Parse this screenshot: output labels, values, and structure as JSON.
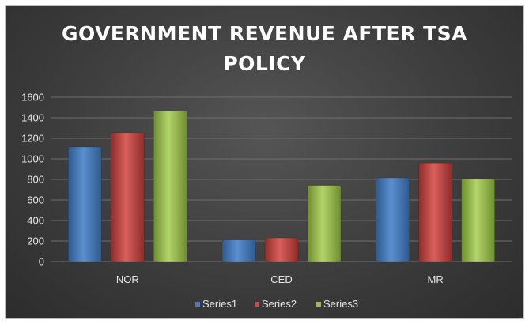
{
  "chart_data": {
    "type": "bar",
    "title": "GOVERNMENT REVENUE AFTER TSA POLICY",
    "categories": [
      "NOR",
      "CED",
      "MR"
    ],
    "series": [
      {
        "name": "Series1",
        "values": [
          1115,
          210,
          815
        ],
        "color": "#4a7ebb"
      },
      {
        "name": "Series2",
        "values": [
          1255,
          230,
          960
        ],
        "color": "#c0504d"
      },
      {
        "name": "Series3",
        "values": [
          1465,
          740,
          805
        ],
        "color": "#9bbb59"
      }
    ],
    "ylim": [
      0,
      1600
    ],
    "yticks": [
      0,
      200,
      400,
      600,
      800,
      1000,
      1200,
      1400,
      1600
    ],
    "grid": true,
    "legend": "bottom"
  }
}
